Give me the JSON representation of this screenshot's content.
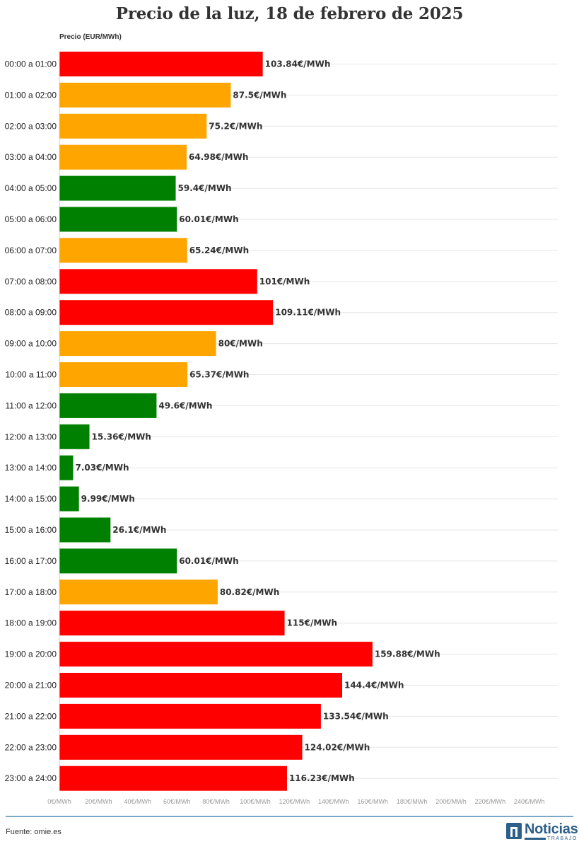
{
  "title": "Precio de la luz, 18 de febrero de 2025",
  "unit_label": "Precio (EUR/MWh)",
  "footer": {
    "source": "Fuente: omie.es",
    "logo_name": "Noticias",
    "logo_sub": "TRABAJO"
  },
  "colors": {
    "high": "#ff0000",
    "mid": "#ffa500",
    "low": "#008000",
    "grid": "#e6e6e6"
  },
  "chart_data": {
    "type": "bar",
    "orientation": "horizontal",
    "title": "Precio de la luz, 18 de febrero de 2025",
    "xlabel": "Precio (EUR/MWh)",
    "ylabel": "",
    "xlim": [
      0,
      250
    ],
    "ticks": [
      "0€/MWh",
      "20€/MWh",
      "40€/MWh",
      "60€/MWh",
      "80€/MWh",
      "100€/MWh",
      "120€/MWh",
      "140€/MWh",
      "160€/MWh",
      "180€/MWh",
      "200€/MWh",
      "220€/MWh",
      "240€/MWh"
    ],
    "tick_values": [
      0,
      20,
      40,
      60,
      80,
      100,
      120,
      140,
      160,
      180,
      200,
      220,
      240
    ],
    "grid": true,
    "categories": [
      "00:00 a 01:00",
      "01:00 a 02:00",
      "02:00 a 03:00",
      "03:00 a 04:00",
      "04:00 a 05:00",
      "05:00 a 06:00",
      "06:00 a 07:00",
      "07:00 a 08:00",
      "08:00 a 09:00",
      "09:00 a 10:00",
      "10:00 a 11:00",
      "11:00 a 12:00",
      "12:00 a 13:00",
      "13:00 a 14:00",
      "14:00 a 15:00",
      "15:00 a 16:00",
      "16:00 a 17:00",
      "17:00 a 18:00",
      "18:00 a 19:00",
      "19:00 a 20:00",
      "20:00 a 21:00",
      "21:00 a 22:00",
      "22:00 a 23:00",
      "23:00 a 24:00"
    ],
    "values": [
      103.84,
      87.5,
      75.2,
      64.98,
      59.4,
      60.01,
      65.24,
      101,
      109.11,
      80,
      65.37,
      49.6,
      15.36,
      7.03,
      9.99,
      26.1,
      60.01,
      80.82,
      115,
      159.88,
      144.4,
      133.54,
      124.02,
      116.23
    ],
    "value_labels": [
      "103.84€/MWh",
      "87.5€/MWh",
      "75.2€/MWh",
      "64.98€/MWh",
      "59.4€/MWh",
      "60.01€/MWh",
      "65.24€/MWh",
      "101€/MWh",
      "109.11€/MWh",
      "80€/MWh",
      "65.37€/MWh",
      "49.6€/MWh",
      "15.36€/MWh",
      "7.03€/MWh",
      "9.99€/MWh",
      "26.1€/MWh",
      "60.01€/MWh",
      "80.82€/MWh",
      "115€/MWh",
      "159.88€/MWh",
      "144.4€/MWh",
      "133.54€/MWh",
      "124.02€/MWh",
      "116.23€/MWh"
    ],
    "levels": [
      "high",
      "mid",
      "mid",
      "mid",
      "low",
      "low",
      "mid",
      "high",
      "high",
      "mid",
      "mid",
      "low",
      "low",
      "low",
      "low",
      "low",
      "low",
      "mid",
      "high",
      "high",
      "high",
      "high",
      "high",
      "high"
    ]
  }
}
